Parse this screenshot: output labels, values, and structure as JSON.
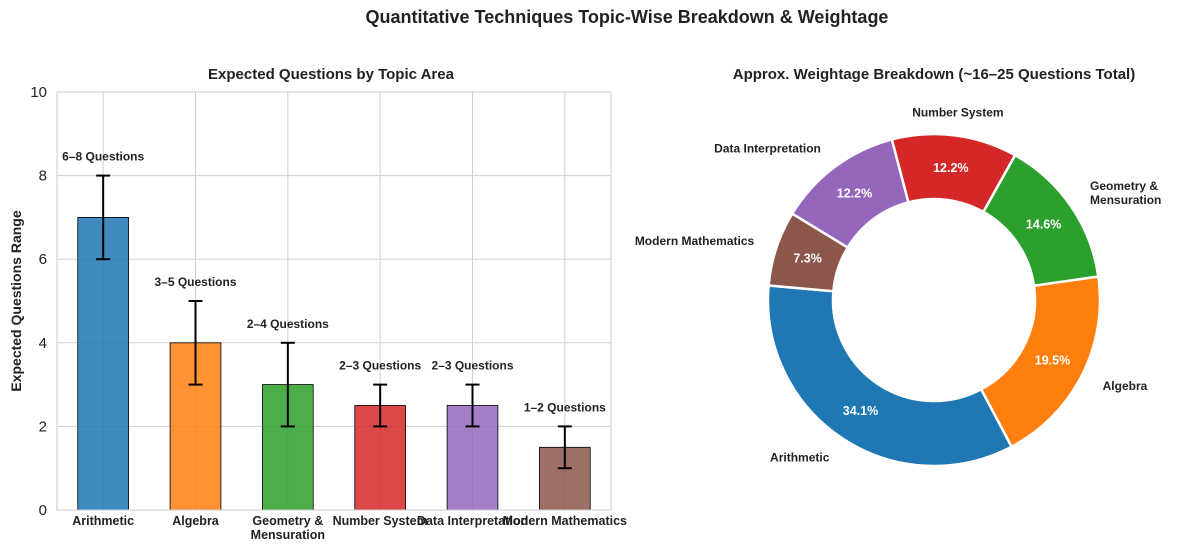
{
  "figure": {
    "title": "Quantitative Techniques Topic-Wise Breakdown & Weightage"
  },
  "chart_data": [
    {
      "type": "bar",
      "title": "Expected Questions by Topic Area",
      "xlabel": "",
      "ylabel": "Expected Questions Range",
      "ylim": [
        0,
        10
      ],
      "yticks": [
        0,
        2,
        4,
        6,
        8,
        10
      ],
      "grid": true,
      "categories": [
        "Arithmetic",
        "Algebra",
        "Geometry &\nMensuration",
        "Number System",
        "Data Interpretation",
        "Modern Mathematics"
      ],
      "values": [
        7,
        4,
        3,
        2.5,
        2.5,
        1.5
      ],
      "error_low": [
        6,
        3,
        2,
        2,
        2,
        1
      ],
      "error_high": [
        8,
        5,
        4,
        3,
        3,
        2
      ],
      "annotations": [
        "6–8 Questions",
        "3–5 Questions",
        "2–4 Questions",
        "2–3 Questions",
        "2–3 Questions",
        "1–2 Questions"
      ],
      "colors": [
        "#1f77b4",
        "#ff7f0e",
        "#2ca02c",
        "#d62728",
        "#9467bd",
        "#8c564b"
      ]
    },
    {
      "type": "pie",
      "donut": true,
      "title": "Approx. Weightage Breakdown (~16–25 Questions Total)",
      "labels": [
        "Arithmetic",
        "Algebra",
        "Geometry &\nMensuration",
        "Number System",
        "Data Interpretation",
        "Modern Mathematics"
      ],
      "values": [
        34.1,
        19.5,
        14.6,
        12.2,
        12.2,
        7.3
      ],
      "pct_labels": [
        "34.1%",
        "19.5%",
        "14.6%",
        "12.2%",
        "12.2%",
        "7.3%"
      ],
      "colors": [
        "#1f77b4",
        "#ff7f0e",
        "#2ca02c",
        "#d62728",
        "#9467bd",
        "#8c564b"
      ]
    }
  ]
}
